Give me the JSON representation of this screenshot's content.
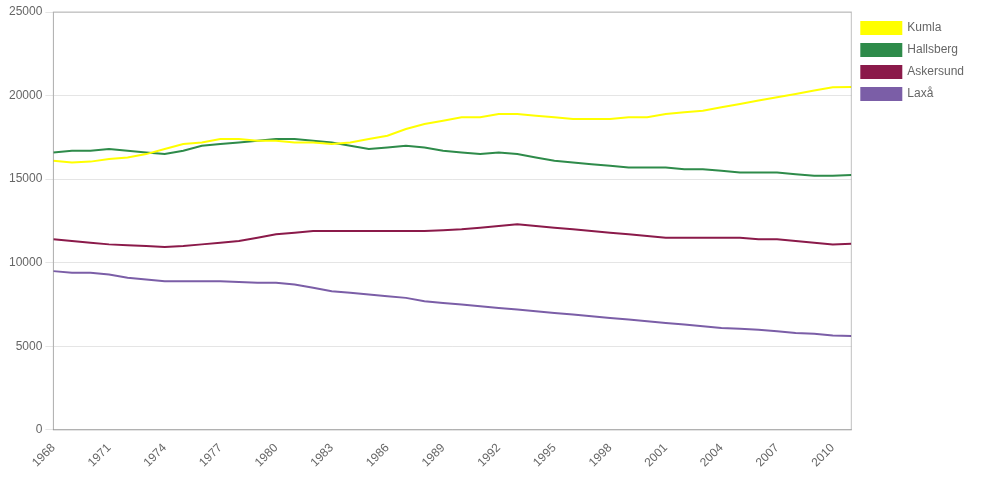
{
  "chart_data": {
    "type": "line",
    "x": [
      1968,
      1969,
      1970,
      1971,
      1972,
      1973,
      1974,
      1975,
      1976,
      1977,
      1978,
      1979,
      1980,
      1981,
      1982,
      1983,
      1984,
      1985,
      1986,
      1987,
      1988,
      1989,
      1990,
      1991,
      1992,
      1993,
      1994,
      1995,
      1996,
      1997,
      1998,
      1999,
      2000,
      2001,
      2002,
      2003,
      2004,
      2005,
      2006,
      2007,
      2008,
      2009,
      2010,
      2011
    ],
    "series": [
      {
        "name": "Kumla",
        "color": "#ffff00",
        "values": [
          16100,
          16000,
          16050,
          16200,
          16300,
          16500,
          16800,
          17100,
          17200,
          17400,
          17400,
          17300,
          17300,
          17200,
          17200,
          17100,
          17200,
          17400,
          17600,
          18000,
          18300,
          18500,
          18700,
          18700,
          18900,
          18900,
          18800,
          18700,
          18600,
          18600,
          18600,
          18700,
          18700,
          18900,
          19000,
          19100,
          19300,
          19500,
          19700,
          19900,
          20100,
          20300,
          20500,
          20510
        ]
      },
      {
        "name": "Hallsberg",
        "color": "#2e8b4a",
        "values": [
          16600,
          16700,
          16700,
          16800,
          16700,
          16600,
          16500,
          16700,
          17000,
          17100,
          17200,
          17300,
          17400,
          17400,
          17300,
          17200,
          17000,
          16800,
          16900,
          17000,
          16900,
          16700,
          16600,
          16500,
          16600,
          16500,
          16300,
          16100,
          16000,
          15900,
          15800,
          15700,
          15700,
          15700,
          15600,
          15600,
          15500,
          15400,
          15400,
          15400,
          15300,
          15200,
          15200,
          15248
        ]
      },
      {
        "name": "Askersund",
        "color": "#8b1a4a",
        "values": [
          11400,
          11300,
          11200,
          11100,
          11050,
          11000,
          10950,
          11000,
          11100,
          11200,
          11300,
          11500,
          11700,
          11800,
          11900,
          11900,
          11900,
          11900,
          11900,
          11900,
          11900,
          11950,
          12000,
          12100,
          12200,
          12300,
          12200,
          12100,
          12000,
          11900,
          11800,
          11700,
          11600,
          11500,
          11500,
          11500,
          11500,
          11500,
          11400,
          11400,
          11300,
          11200,
          11100,
          11134
        ]
      },
      {
        "name": "Laxå",
        "color": "#7b5ea7",
        "values": [
          9500,
          9400,
          9400,
          9300,
          9100,
          9000,
          8900,
          8900,
          8900,
          8900,
          8850,
          8800,
          8800,
          8700,
          8500,
          8300,
          8200,
          8100,
          8000,
          7900,
          7700,
          7600,
          7500,
          7400,
          7300,
          7200,
          7100,
          7000,
          6900,
          6800,
          6700,
          6600,
          6500,
          6400,
          6300,
          6200,
          6100,
          6050,
          6000,
          5900,
          5800,
          5750,
          5650,
          5622
        ]
      }
    ],
    "xlim": [
      1968,
      2011
    ],
    "xticks": [
      1968,
      1971,
      1974,
      1977,
      1980,
      1983,
      1986,
      1989,
      1992,
      1995,
      1998,
      2001,
      2004,
      2007,
      2010
    ],
    "ylim": [
      0,
      25000
    ],
    "yticks": [
      0,
      5000,
      10000,
      15000,
      20000,
      25000
    ],
    "grid": "y",
    "legend": "right"
  }
}
